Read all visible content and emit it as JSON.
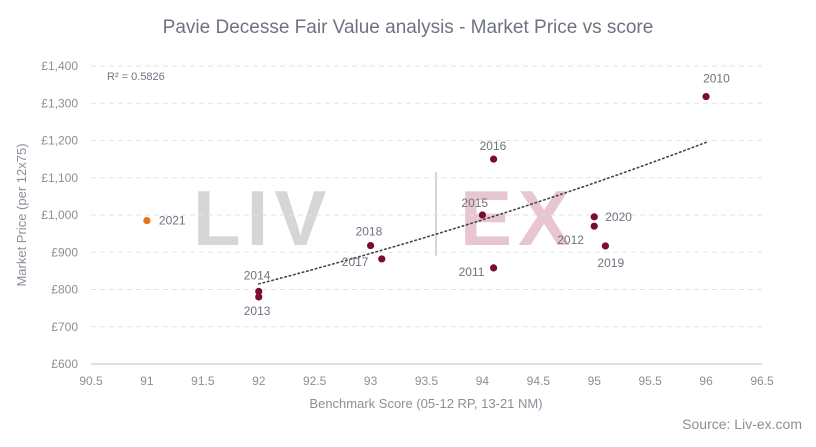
{
  "chart_data": {
    "type": "scatter",
    "title": "Pavie Decesse Fair Value analysis - Market Price vs score",
    "xlabel": "Benchmark Score (05-12 RP, 13-21 NM)",
    "ylabel": "Market Price (per 12x75)",
    "xlim": [
      90.5,
      96.5
    ],
    "ylim": [
      600,
      1400
    ],
    "x_ticks": [
      "90.5",
      "91",
      "91.5",
      "92",
      "92.5",
      "93",
      "93.5",
      "94",
      "94.5",
      "95",
      "95.5",
      "96",
      "96.5"
    ],
    "y_ticks": [
      "£600",
      "£700",
      "£800",
      "£900",
      "£1,000",
      "£1,100",
      "£1,200",
      "£1,300",
      "£1,400"
    ],
    "grid": "horizontal dashed",
    "r_squared_label": "R² = 0.5826",
    "source": "Source: Liv-ex.com",
    "watermark": "LIV-EX",
    "colors": {
      "point": "#7b0c2e",
      "highlight": "#e8731a",
      "trend": "#444444",
      "title": "#6e7380"
    },
    "points": [
      {
        "label": "2010",
        "x": 96,
        "y": 1318,
        "highlight": false
      },
      {
        "label": "2011",
        "x": 94.1,
        "y": 858,
        "highlight": false
      },
      {
        "label": "2012",
        "x": 95,
        "y": 970,
        "highlight": false
      },
      {
        "label": "2013",
        "x": 92,
        "y": 780,
        "highlight": false
      },
      {
        "label": "2014",
        "x": 92,
        "y": 795,
        "highlight": false
      },
      {
        "label": "2015",
        "x": 94,
        "y": 1000,
        "highlight": false
      },
      {
        "label": "2016",
        "x": 94.1,
        "y": 1150,
        "highlight": false
      },
      {
        "label": "2017",
        "x": 93.1,
        "y": 882,
        "highlight": false
      },
      {
        "label": "2018",
        "x": 93,
        "y": 918,
        "highlight": false
      },
      {
        "label": "2019",
        "x": 95.1,
        "y": 917,
        "highlight": false
      },
      {
        "label": "2020",
        "x": 95,
        "y": 995,
        "highlight": false
      },
      {
        "label": "2021",
        "x": 91,
        "y": 985,
        "highlight": true
      }
    ],
    "trendline": {
      "type": "exponential",
      "x_from": 92,
      "x_to": 96,
      "y_at_x_from": 815,
      "y_at_x_to": 1195
    }
  }
}
